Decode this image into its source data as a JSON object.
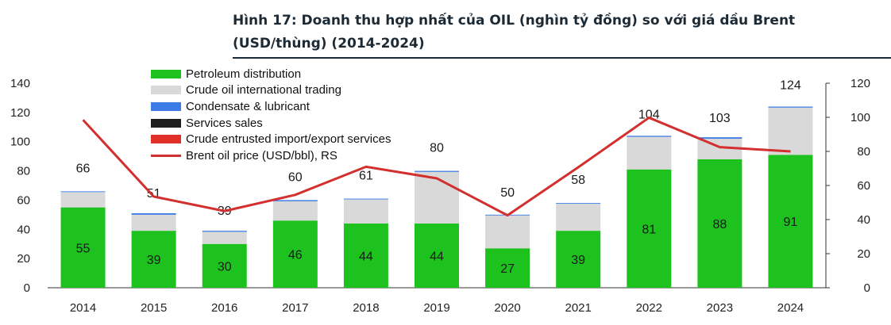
{
  "title": "Hình 17: Doanh thu hợp nhất của OIL (nghìn tỷ đồng) so với giá dầu Brent (USD/thùng) (2014-2024)",
  "colors": {
    "petroleum": "#1ec21e",
    "crude_trading": "#d9d9d9",
    "condensate": "#3d7be6",
    "services": "#1f1f1f",
    "crude_entrusted": "#e0302a",
    "brent": "#d32f2f"
  },
  "chart_data": {
    "type": "bar",
    "stacked": true,
    "categories": [
      "2014",
      "2015",
      "2016",
      "2017",
      "2018",
      "2019",
      "2020",
      "2021",
      "2022",
      "2023",
      "2024"
    ],
    "ylim_left": [
      0,
      140
    ],
    "yticks_left": [
      "0",
      "20",
      "40",
      "60",
      "80",
      "100",
      "120",
      "140"
    ],
    "ylim_right": [
      0,
      120
    ],
    "yticks_right": [
      "0",
      "20",
      "40",
      "60",
      "80",
      "100",
      "120"
    ],
    "grid": false,
    "legend_position": "top-left",
    "totals": [
      66,
      51,
      39,
      60,
      61,
      80,
      50,
      58,
      104,
      103,
      124
    ],
    "series": [
      {
        "name": "Petroleum distribution",
        "key": "petroleum",
        "values": [
          55,
          39,
          30,
          46,
          44,
          44,
          27,
          39,
          81,
          88,
          91
        ]
      },
      {
        "name": "Crude oil international trading",
        "key": "crude_trading",
        "values": [
          10.5,
          11,
          8.3,
          13.2,
          16.5,
          35.3,
          22.5,
          18.5,
          22.3,
          14,
          32.3
        ]
      },
      {
        "name": "Condensate & lubricant",
        "key": "condensate",
        "values": [
          0.5,
          1,
          0.7,
          0.8,
          0.5,
          0.7,
          0.5,
          0.5,
          0.7,
          1,
          0.7
        ]
      },
      {
        "name": "Services sales",
        "key": "services",
        "values": [
          0,
          0,
          0,
          0,
          0,
          0,
          0,
          0,
          0,
          0,
          0
        ]
      },
      {
        "name": "Crude entrusted import/export services",
        "key": "crude_entrusted",
        "values": [
          0,
          0,
          0,
          0,
          0,
          0,
          0,
          0,
          0,
          0,
          0
        ]
      }
    ],
    "line_series": {
      "name": "Brent oil price (USD/bbl), RS",
      "axis": "right",
      "values": [
        98.5,
        53.5,
        45,
        54.5,
        71,
        64.2,
        42.5,
        70.7,
        99.8,
        82.5,
        80
      ]
    }
  }
}
